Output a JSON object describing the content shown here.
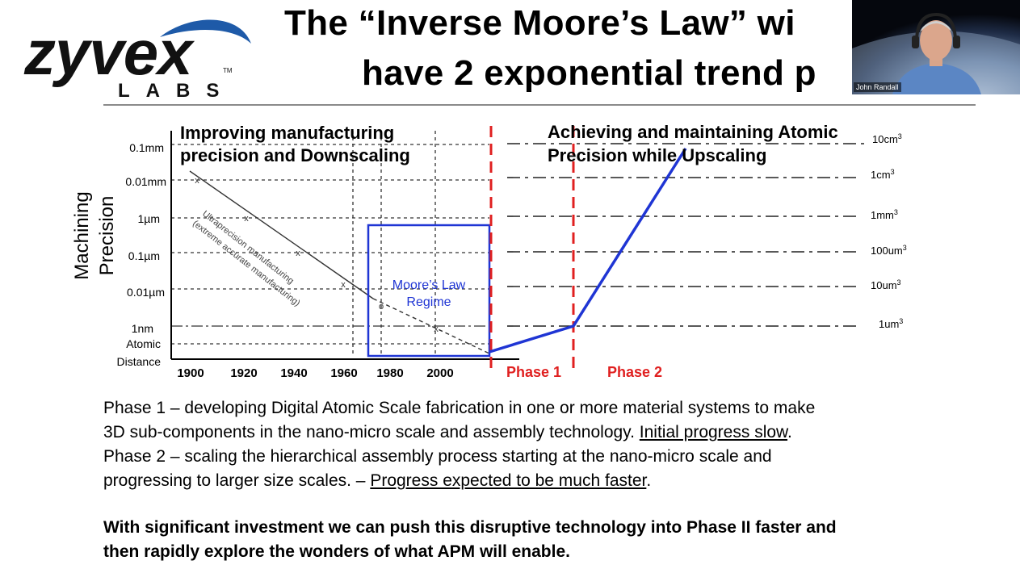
{
  "logo": {
    "wordmark": "zyvex",
    "tm": "TM",
    "sub": "LABS"
  },
  "title": {
    "line1": "The “Inverse Moore’s Law” wi",
    "line2": "have 2 exponential trend p"
  },
  "video": {
    "participant_name": "John Randall"
  },
  "chart": {
    "y_axis_title_1": "Machining",
    "y_axis_title_2": "Precision",
    "y_ticks": [
      "0.1mm",
      "0.01mm",
      "1µm",
      "0.1µm",
      "0.01µm",
      "1nm",
      "Atomic",
      "Distance"
    ],
    "x_ticks": [
      "1900",
      "1920",
      "1940",
      "1960",
      "1980",
      "2000"
    ],
    "left_heading_1": "Improving manufacturing",
    "left_heading_2": "precision and Downscaling",
    "right_heading_1": "Achieving and maintaining Atomic",
    "right_heading_2": "Precision while Upscaling",
    "diag_label_1": "Ultraprecision manufacturing",
    "diag_label_2": "(extreme accurate manufacturing)",
    "moore_label_1": "Moore’s Law",
    "moore_label_2": "Regime",
    "phase1": "Phase 1",
    "phase2": "Phase 2",
    "volume_labels": [
      "10cm",
      "1cm",
      "1mm",
      "100um",
      "10um",
      "1um"
    ],
    "volume_superscript": "3",
    "colors": {
      "blue": "#1f35d4",
      "red": "#e02020"
    }
  },
  "chart_data": {
    "type": "line",
    "title": "",
    "xlabel": "",
    "ylabel": "Machining Precision",
    "x_ticks": [
      1900,
      1920,
      1940,
      1960,
      1980,
      2000
    ],
    "y_ticks": [
      "0.1mm",
      "0.01mm",
      "1µm",
      "0.1µm",
      "0.01µm",
      "1nm",
      "Atomic Distance"
    ],
    "series": [
      {
        "name": "Ultraprecision manufacturing (extreme accurate manufacturing)",
        "x": [
          1902,
          1922,
          1942,
          1960,
          1972,
          2003,
          2020
        ],
        "y": [
          "0.01mm",
          "1µm",
          "0.1µm",
          "0.01µm",
          "0.01µm",
          "1nm",
          "Atomic Distance"
        ]
      }
    ],
    "moore_law_regime": {
      "label": "Moore’s Law Regime",
      "x_range": [
        1970,
        2020
      ]
    },
    "phase_curve": {
      "phase1": {
        "start": "Atomic Distance",
        "end": "1um3"
      },
      "phase2": {
        "start": "1um3",
        "end": "10cm3"
      }
    },
    "volume_levels": [
      "10cm3",
      "1cm3",
      "1mm3",
      "100um3",
      "10um3",
      "1um3"
    ]
  },
  "text": {
    "phase1_line1": "Phase 1 – developing Digital Atomic Scale fabrication in one or more material systems to make",
    "phase1_line2_plain": "3D sub-components in the nano-micro scale and assembly technology. ",
    "phase1_line2_underlined": "Initial progress slow",
    "phase1_line2_end": ".",
    "phase2_line1": "Phase 2 – scaling the hierarchical assembly process starting at the nano-micro scale and",
    "phase2_line2_plain": "progressing to larger size scales. – ",
    "phase2_line2_underlined": "Progress expected to be much faster",
    "phase2_line2_end": ".",
    "bottom_line1": "With significant investment we can push this disruptive technology into Phase II faster and",
    "bottom_line2": "then rapidly explore the wonders of what APM will enable."
  }
}
